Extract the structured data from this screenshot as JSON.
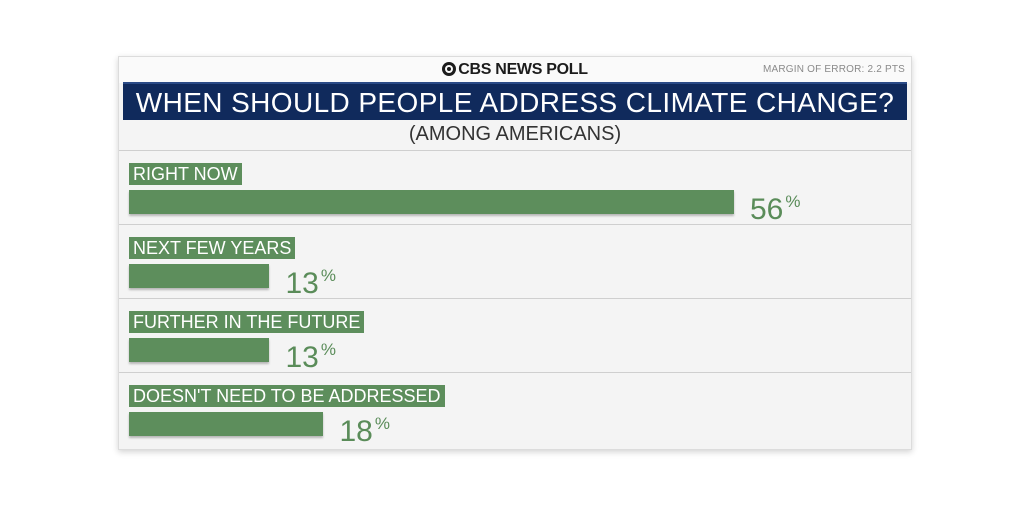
{
  "brand": "CBS NEWS POLL",
  "margin_of_error": "MARGIN OF ERROR: 2.2 PTS",
  "colors": {
    "title_bar": "#102a5c",
    "bar": "#5d8e5c",
    "value_text": "#5a8c59"
  },
  "chart_data": {
    "type": "bar",
    "orientation": "horizontal",
    "title": "WHEN SHOULD PEOPLE ADDRESS CLIMATE CHANGE?",
    "subtitle": "(AMONG AMERICANS)",
    "categories": [
      "RIGHT NOW",
      "NEXT FEW YEARS",
      "FURTHER IN THE FUTURE",
      "DOESN'T NEED TO BE ADDRESSED"
    ],
    "values": [
      56,
      13,
      13,
      18
    ],
    "unit": "%",
    "xlim": [
      0,
      100
    ],
    "grid": false,
    "legend": "none"
  }
}
